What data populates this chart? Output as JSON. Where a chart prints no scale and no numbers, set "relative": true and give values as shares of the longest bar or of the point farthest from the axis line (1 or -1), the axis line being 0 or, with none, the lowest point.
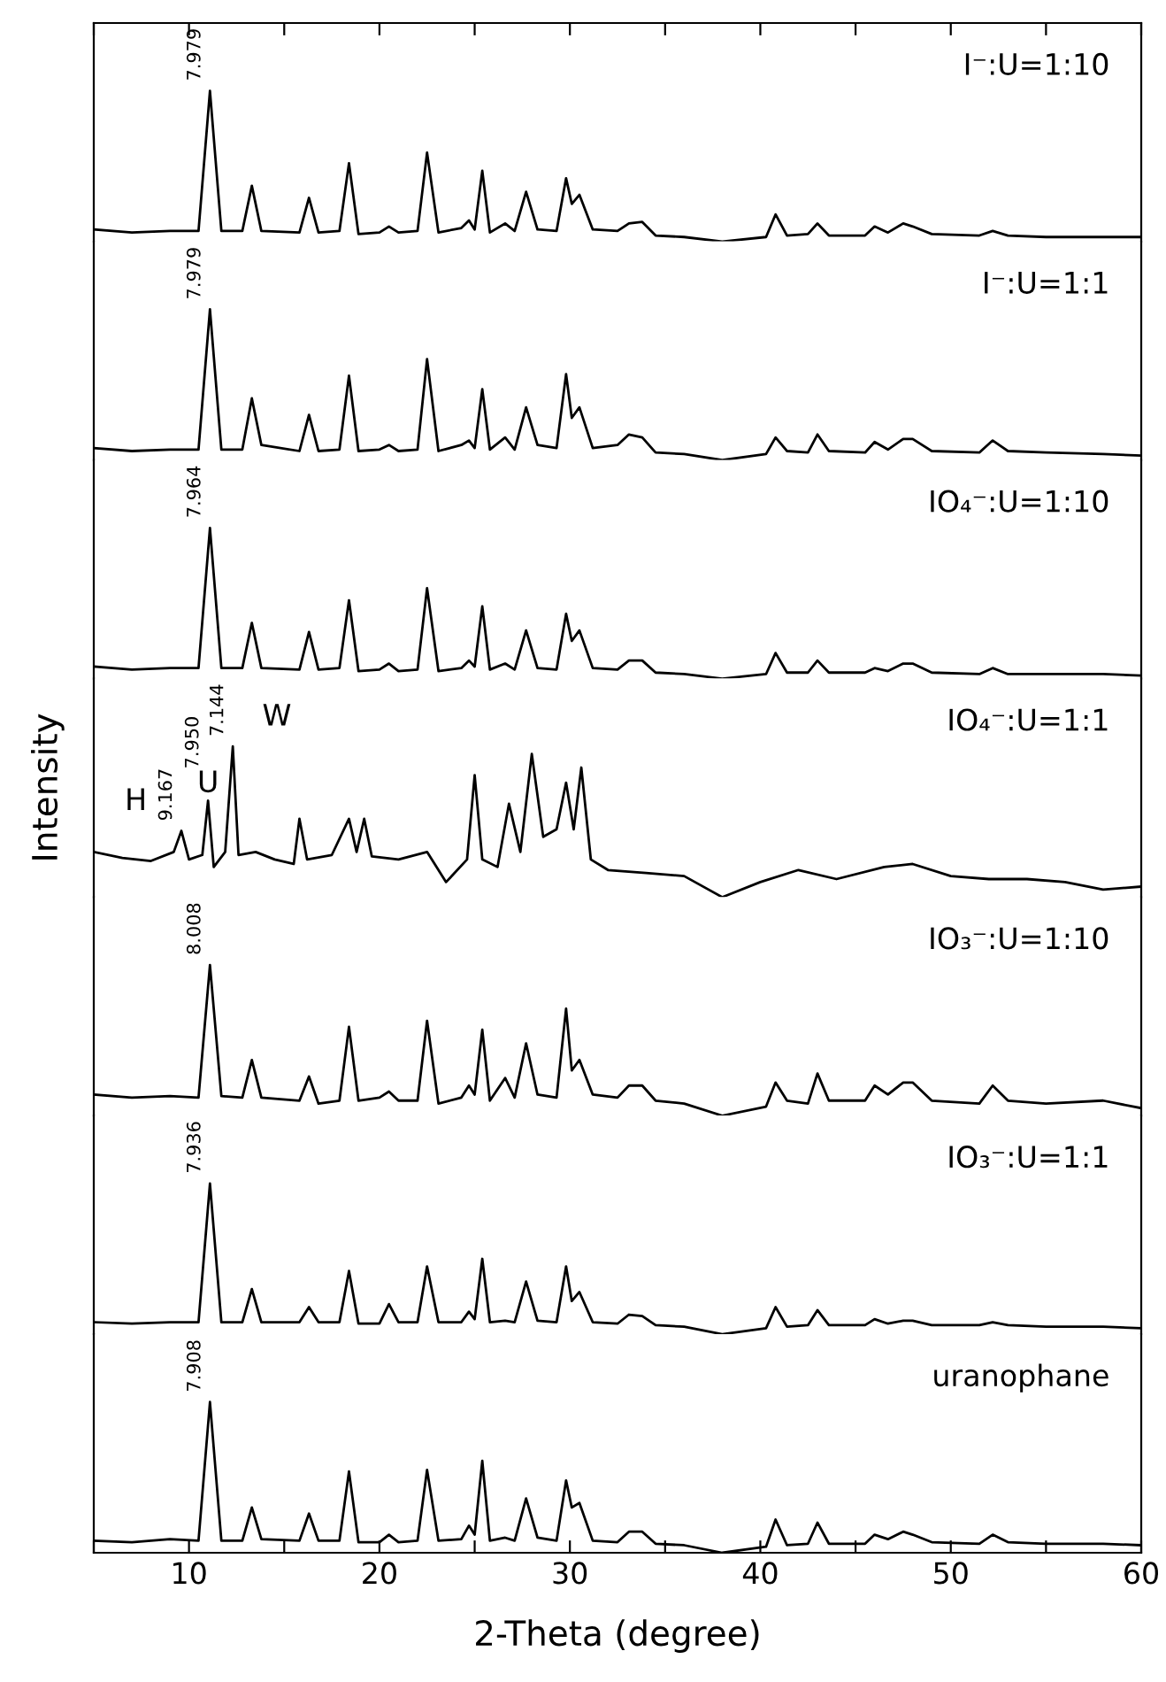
{
  "chart_data": [
    {
      "type": "line",
      "relative": true,
      "tick_labels": false,
      "xlim": [
        5,
        60
      ],
      "x": [
        5,
        7,
        9,
        10.5,
        11.1,
        11.7,
        12.8,
        13.3,
        13.8,
        15.8,
        16.3,
        16.8,
        17.9,
        18.4,
        18.9,
        20.0,
        20.5,
        21.0,
        22.0,
        22.5,
        23.1,
        24.3,
        24.7,
        25.0,
        25.4,
        25.8,
        26.6,
        27.1,
        27.7,
        28.3,
        29.3,
        29.8,
        30.1,
        30.5,
        31.2,
        32.5,
        33.1,
        33.8,
        34.5,
        36,
        38,
        40.3,
        40.8,
        41.4,
        42.5,
        43.0,
        43.6,
        45.5,
        46.0,
        46.7,
        47.5,
        48.0,
        49.0,
        51.5,
        52.2,
        53,
        55,
        58,
        60
      ],
      "series": [
        {
          "name": "I⁻:U=1:10",
          "color": "#000000",
          "values": [
            0.08,
            0.06,
            0.07,
            0.07,
            1.0,
            0.07,
            0.07,
            0.37,
            0.07,
            0.06,
            0.29,
            0.06,
            0.07,
            0.52,
            0.05,
            0.06,
            0.1,
            0.06,
            0.07,
            0.59,
            0.06,
            0.09,
            0.14,
            0.08,
            0.47,
            0.06,
            0.12,
            0.07,
            0.33,
            0.08,
            0.07,
            0.42,
            0.25,
            0.31,
            0.08,
            0.07,
            0.12,
            0.13,
            0.04,
            0.03,
            0.0,
            0.03,
            0.18,
            0.04,
            0.05,
            0.12,
            0.04,
            0.04,
            0.1,
            0.06,
            0.12,
            0.1,
            0.05,
            0.04,
            0.07,
            0.04,
            0.03,
            0.03,
            0.03
          ]
        }
      ],
      "annotations": [
        {
          "text": "7.979",
          "x": 11.1,
          "y": 1.0
        }
      ]
    },
    {
      "type": "line",
      "relative": true,
      "tick_labels": false,
      "xlim": [
        5,
        60
      ],
      "x": [
        5,
        7,
        9,
        10.5,
        11.1,
        11.7,
        12.8,
        13.3,
        13.8,
        15.8,
        16.3,
        16.8,
        17.9,
        18.4,
        18.9,
        20.0,
        20.5,
        21.0,
        22.0,
        22.5,
        23.1,
        24.3,
        24.7,
        25.0,
        25.4,
        25.8,
        26.6,
        27.1,
        27.7,
        28.3,
        29.3,
        29.8,
        30.1,
        30.5,
        31.2,
        32.5,
        33.1,
        33.8,
        34.5,
        36,
        38,
        40.3,
        40.8,
        41.4,
        42.5,
        43.0,
        43.6,
        45.5,
        46.0,
        46.7,
        47.5,
        48.0,
        49.0,
        51.5,
        52.2,
        53,
        55,
        58,
        60
      ],
      "series": [
        {
          "name": "I⁻:U=1:1",
          "color": "#000000",
          "values": [
            0.08,
            0.06,
            0.07,
            0.07,
            1.0,
            0.07,
            0.07,
            0.41,
            0.1,
            0.06,
            0.3,
            0.06,
            0.07,
            0.56,
            0.06,
            0.07,
            0.1,
            0.06,
            0.07,
            0.67,
            0.06,
            0.1,
            0.13,
            0.08,
            0.47,
            0.07,
            0.15,
            0.07,
            0.35,
            0.1,
            0.08,
            0.57,
            0.28,
            0.35,
            0.08,
            0.1,
            0.17,
            0.15,
            0.05,
            0.04,
            0.0,
            0.04,
            0.15,
            0.06,
            0.05,
            0.17,
            0.06,
            0.05,
            0.12,
            0.07,
            0.14,
            0.14,
            0.06,
            0.05,
            0.13,
            0.06,
            0.05,
            0.04,
            0.03
          ]
        }
      ],
      "annotations": [
        {
          "text": "7.979",
          "x": 11.1,
          "y": 1.0
        }
      ]
    },
    {
      "type": "line",
      "relative": true,
      "tick_labels": false,
      "xlim": [
        5,
        60
      ],
      "x": [
        5,
        7,
        9,
        10.5,
        11.1,
        11.7,
        12.8,
        13.3,
        13.8,
        15.8,
        16.3,
        16.8,
        17.9,
        18.4,
        18.9,
        20.0,
        20.5,
        21.0,
        22.0,
        22.5,
        23.1,
        24.3,
        24.7,
        25.0,
        25.4,
        25.8,
        26.6,
        27.1,
        27.7,
        28.3,
        29.3,
        29.8,
        30.1,
        30.5,
        31.2,
        32.5,
        33.1,
        33.8,
        34.5,
        36,
        38,
        40.3,
        40.8,
        41.4,
        42.5,
        43.0,
        43.6,
        45.5,
        46.0,
        46.7,
        47.5,
        48.0,
        49.0,
        51.5,
        52.2,
        53,
        55,
        58,
        60
      ],
      "series": [
        {
          "name": "IO₄⁻:U=1:10",
          "color": "#000000",
          "values": [
            0.08,
            0.06,
            0.07,
            0.07,
            1.0,
            0.07,
            0.07,
            0.37,
            0.07,
            0.06,
            0.31,
            0.06,
            0.07,
            0.52,
            0.05,
            0.06,
            0.1,
            0.05,
            0.06,
            0.6,
            0.05,
            0.07,
            0.12,
            0.08,
            0.48,
            0.06,
            0.1,
            0.06,
            0.32,
            0.07,
            0.06,
            0.43,
            0.25,
            0.32,
            0.07,
            0.06,
            0.12,
            0.12,
            0.04,
            0.03,
            0.0,
            0.03,
            0.17,
            0.04,
            0.04,
            0.12,
            0.04,
            0.04,
            0.07,
            0.05,
            0.1,
            0.1,
            0.04,
            0.03,
            0.07,
            0.03,
            0.03,
            0.03,
            0.02
          ]
        }
      ],
      "annotations": [
        {
          "text": "7.964",
          "x": 11.1,
          "y": 1.0
        }
      ]
    },
    {
      "type": "line",
      "relative": true,
      "tick_labels": false,
      "xlim": [
        5,
        60
      ],
      "ylabel": "Intensity",
      "x": [
        5,
        6.5,
        8,
        9.2,
        9.6,
        10.0,
        10.7,
        11.0,
        11.3,
        11.9,
        12.3,
        12.6,
        13.5,
        14.5,
        15.5,
        15.8,
        16.2,
        17.5,
        18.4,
        18.8,
        19.2,
        19.6,
        21,
        22.5,
        23.5,
        24.6,
        25.0,
        25.4,
        26.2,
        26.8,
        27.4,
        28.0,
        28.6,
        29.3,
        29.8,
        30.2,
        30.6,
        31.1,
        32,
        34,
        36,
        38,
        40,
        42,
        44,
        46.5,
        48,
        50,
        52,
        54,
        56,
        58,
        60
      ],
      "series": [
        {
          "name": "IO₄⁻:U=1:1",
          "color": "#000000",
          "values": [
            0.3,
            0.26,
            0.24,
            0.3,
            0.44,
            0.25,
            0.28,
            0.64,
            0.2,
            0.3,
            1.0,
            0.28,
            0.3,
            0.25,
            0.22,
            0.52,
            0.25,
            0.28,
            0.52,
            0.3,
            0.52,
            0.27,
            0.25,
            0.3,
            0.1,
            0.25,
            0.81,
            0.25,
            0.2,
            0.62,
            0.3,
            0.95,
            0.4,
            0.45,
            0.76,
            0.45,
            0.86,
            0.25,
            0.18,
            0.16,
            0.14,
            0.0,
            0.1,
            0.18,
            0.12,
            0.2,
            0.22,
            0.14,
            0.12,
            0.12,
            0.1,
            0.05,
            0.07
          ]
        }
      ],
      "annotations": [
        {
          "text": "H",
          "x": 9.6,
          "y": 0.44
        },
        {
          "text": "9.167",
          "x": 9.6,
          "y": 0.44
        },
        {
          "text": "U",
          "x": 11.0,
          "y": 0.64
        },
        {
          "text": "7.950",
          "x": 11.0,
          "y": 0.64
        },
        {
          "text": "W",
          "x": 12.3,
          "y": 1.0
        },
        {
          "text": "7.144",
          "x": 12.3,
          "y": 1.0
        }
      ]
    },
    {
      "type": "line",
      "relative": true,
      "tick_labels": false,
      "xlim": [
        5,
        60
      ],
      "x": [
        5,
        7,
        9,
        10.5,
        11.1,
        11.7,
        12.8,
        13.3,
        13.8,
        15.8,
        16.3,
        16.8,
        17.9,
        18.4,
        18.9,
        20.0,
        20.5,
        21.0,
        22.0,
        22.5,
        23.1,
        24.3,
        24.7,
        25.0,
        25.4,
        25.8,
        26.6,
        27.1,
        27.7,
        28.3,
        29.3,
        29.8,
        30.1,
        30.5,
        31.2,
        32.5,
        33.1,
        33.8,
        34.5,
        36,
        38,
        40.3,
        40.8,
        41.4,
        42.5,
        43.0,
        43.6,
        45.5,
        46.0,
        46.7,
        47.5,
        48.0,
        49.0,
        51.5,
        52.2,
        53,
        55,
        58,
        60
      ],
      "series": [
        {
          "name": "IO₃⁻:U=1:10",
          "color": "#000000",
          "values": [
            0.14,
            0.12,
            0.13,
            0.12,
            1.0,
            0.13,
            0.12,
            0.37,
            0.12,
            0.1,
            0.26,
            0.08,
            0.1,
            0.59,
            0.1,
            0.12,
            0.16,
            0.1,
            0.1,
            0.63,
            0.08,
            0.12,
            0.2,
            0.14,
            0.57,
            0.1,
            0.25,
            0.12,
            0.48,
            0.14,
            0.12,
            0.71,
            0.3,
            0.37,
            0.14,
            0.12,
            0.2,
            0.2,
            0.1,
            0.08,
            0.0,
            0.06,
            0.22,
            0.1,
            0.08,
            0.28,
            0.1,
            0.1,
            0.2,
            0.14,
            0.22,
            0.22,
            0.1,
            0.08,
            0.2,
            0.1,
            0.08,
            0.1,
            0.05
          ]
        }
      ],
      "annotations": [
        {
          "text": "8.008",
          "x": 11.1,
          "y": 1.0
        }
      ]
    },
    {
      "type": "line",
      "relative": true,
      "tick_labels": false,
      "xlim": [
        5,
        60
      ],
      "x": [
        5,
        7,
        9,
        10.5,
        11.1,
        11.7,
        12.8,
        13.3,
        13.8,
        15.8,
        16.3,
        16.8,
        17.9,
        18.4,
        18.9,
        20.0,
        20.5,
        21.0,
        22.0,
        22.5,
        23.1,
        24.3,
        24.7,
        25.0,
        25.4,
        25.8,
        26.6,
        27.1,
        27.7,
        28.3,
        29.3,
        29.8,
        30.1,
        30.5,
        31.2,
        32.5,
        33.1,
        33.8,
        34.5,
        36,
        38,
        40.3,
        40.8,
        41.4,
        42.5,
        43.0,
        43.6,
        45.5,
        46.0,
        46.7,
        47.5,
        48.0,
        49.0,
        51.5,
        52.2,
        53,
        55,
        58,
        60
      ],
      "series": [
        {
          "name": "IO₃⁻:U=1:1",
          "color": "#000000",
          "values": [
            0.08,
            0.07,
            0.08,
            0.08,
            1.0,
            0.08,
            0.08,
            0.3,
            0.08,
            0.08,
            0.18,
            0.08,
            0.08,
            0.42,
            0.07,
            0.07,
            0.2,
            0.08,
            0.08,
            0.45,
            0.08,
            0.08,
            0.15,
            0.1,
            0.5,
            0.08,
            0.09,
            0.08,
            0.35,
            0.09,
            0.08,
            0.45,
            0.22,
            0.28,
            0.08,
            0.07,
            0.13,
            0.12,
            0.06,
            0.05,
            0.0,
            0.04,
            0.18,
            0.05,
            0.06,
            0.16,
            0.06,
            0.06,
            0.1,
            0.07,
            0.09,
            0.09,
            0.06,
            0.06,
            0.08,
            0.06,
            0.05,
            0.05,
            0.04
          ]
        }
      ],
      "annotations": [
        {
          "text": "7.936",
          "x": 11.1,
          "y": 1.0
        }
      ]
    },
    {
      "type": "line",
      "relative": true,
      "tick_labels": "x",
      "xlim": [
        5,
        60
      ],
      "xlabel": "2-Theta (degree)",
      "xticks": [
        {
          "value": 5,
          "label": null
        },
        10,
        {
          "value": 15,
          "label": null
        },
        20,
        {
          "value": 25,
          "label": null
        },
        30,
        {
          "value": 35,
          "label": null
        },
        40,
        {
          "value": 45,
          "label": null
        },
        50,
        {
          "value": 55,
          "label": null
        },
        60
      ],
      "x": [
        5,
        7,
        9,
        10.5,
        11.1,
        11.7,
        12.8,
        13.3,
        13.8,
        15.8,
        16.3,
        16.8,
        17.9,
        18.4,
        18.9,
        20.0,
        20.5,
        21.0,
        22.0,
        22.5,
        23.1,
        24.3,
        24.7,
        25.0,
        25.4,
        25.8,
        26.6,
        27.1,
        27.7,
        28.3,
        29.3,
        29.8,
        30.1,
        30.5,
        31.2,
        32.5,
        33.1,
        33.8,
        34.5,
        36,
        38,
        40.3,
        40.8,
        41.4,
        42.5,
        43.0,
        43.6,
        45.5,
        46.0,
        46.7,
        47.5,
        48.0,
        49.0,
        51.5,
        52.2,
        53,
        55,
        58,
        60
      ],
      "series": [
        {
          "name": "uranophane",
          "color": "#000000",
          "values": [
            0.08,
            0.07,
            0.09,
            0.08,
            1.0,
            0.08,
            0.08,
            0.3,
            0.09,
            0.08,
            0.26,
            0.08,
            0.08,
            0.54,
            0.07,
            0.07,
            0.12,
            0.07,
            0.08,
            0.55,
            0.08,
            0.09,
            0.18,
            0.12,
            0.61,
            0.08,
            0.1,
            0.08,
            0.36,
            0.1,
            0.08,
            0.48,
            0.3,
            0.33,
            0.08,
            0.07,
            0.14,
            0.14,
            0.06,
            0.05,
            0.0,
            0.04,
            0.22,
            0.05,
            0.06,
            0.2,
            0.06,
            0.06,
            0.12,
            0.09,
            0.14,
            0.12,
            0.07,
            0.06,
            0.12,
            0.07,
            0.06,
            0.06,
            0.05
          ]
        }
      ],
      "annotations": [
        {
          "text": "7.908",
          "x": 11.1,
          "y": 1.0
        }
      ]
    }
  ]
}
